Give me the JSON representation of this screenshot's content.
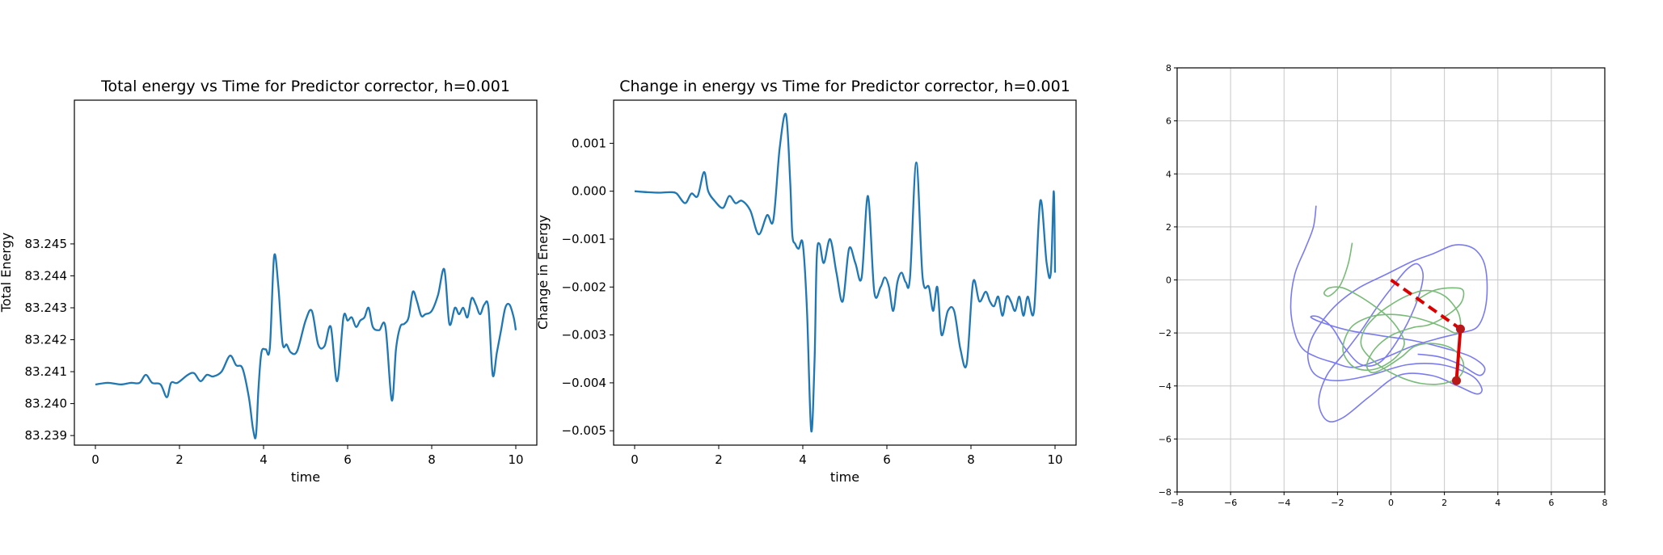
{
  "chart_data": [
    {
      "type": "line",
      "title": "Total energy vs Time for Predictor corrector, h=0.001",
      "xlabel": "time",
      "ylabel": "Total Energy",
      "xlim": [
        -0.5,
        10.5
      ],
      "ylim": [
        83.2387,
        83.2495
      ],
      "xticks": [
        "0",
        "2",
        "4",
        "6",
        "8",
        "10"
      ],
      "xtick_values": [
        0,
        2,
        4,
        6,
        8,
        10
      ],
      "yticks": [
        "83.239",
        "83.240",
        "83.241",
        "83.242",
        "83.243",
        "83.244",
        "83.245"
      ],
      "ytick_values": [
        83.239,
        83.24,
        83.241,
        83.242,
        83.243,
        83.244,
        83.245
      ],
      "color": "#1f77b4",
      "series": [
        {
          "x": [
            0,
            0.3,
            0.6,
            0.85,
            1.05,
            1.2,
            1.35,
            1.55,
            1.7,
            1.8,
            1.95,
            2.2,
            2.35,
            2.5,
            2.65,
            2.8,
            3.0,
            3.2,
            3.35,
            3.5,
            3.65,
            3.75,
            3.82,
            3.88,
            3.95,
            4.05,
            4.15,
            4.25,
            4.35,
            4.45,
            4.55,
            4.65,
            4.8,
            5.0,
            5.15,
            5.3,
            5.45,
            5.6,
            5.75,
            5.9,
            6.0,
            6.1,
            6.2,
            6.3,
            6.4,
            6.5,
            6.6,
            6.75,
            6.9,
            7.05,
            7.15,
            7.25,
            7.35,
            7.45,
            7.55,
            7.65,
            7.75,
            7.85,
            8.0,
            8.15,
            8.3,
            8.42,
            8.55,
            8.65,
            8.75,
            8.85,
            8.95,
            9.05,
            9.15,
            9.25,
            9.35,
            9.45,
            9.55,
            9.65,
            9.75,
            9.85,
            9.95,
            10.0
          ],
          "y": [
            83.2406,
            83.24065,
            83.2406,
            83.24065,
            83.24065,
            83.2409,
            83.24065,
            83.2406,
            83.2402,
            83.24065,
            83.24065,
            83.2409,
            83.24095,
            83.2407,
            83.2409,
            83.24085,
            83.241,
            83.2415,
            83.2412,
            83.2411,
            83.2402,
            83.2392,
            83.239,
            83.2405,
            83.2416,
            83.2417,
            83.24175,
            83.2446,
            83.2437,
            83.2419,
            83.24185,
            83.2416,
            83.24165,
            83.2426,
            83.2429,
            83.24185,
            83.2418,
            83.2424,
            83.2407,
            83.2427,
            83.2426,
            83.2427,
            83.2424,
            83.2426,
            83.2427,
            83.243,
            83.2424,
            83.2423,
            83.2424,
            83.2401,
            83.2417,
            83.2424,
            83.2425,
            83.2427,
            83.2435,
            83.2432,
            83.24275,
            83.2428,
            83.2429,
            83.2434,
            83.2442,
            83.2425,
            83.243,
            83.2428,
            83.243,
            83.2427,
            83.2433,
            83.2431,
            83.2428,
            83.2431,
            83.243,
            83.2409,
            83.2416,
            83.2423,
            83.243,
            83.2431,
            83.2427,
            83.2423
          ]
        }
      ]
    },
    {
      "type": "line",
      "title": "Change in energy vs Time for Predictor corrector, h=0.001",
      "xlabel": "time",
      "ylabel": "Change in Energy",
      "xlim": [
        -0.5,
        10.5
      ],
      "ylim": [
        -0.0053,
        0.0019
      ],
      "xticks": [
        "0",
        "2",
        "4",
        "6",
        "8",
        "10"
      ],
      "xtick_values": [
        0,
        2,
        4,
        6,
        8,
        10
      ],
      "yticks": [
        "0.001",
        "0.000",
        "−0.001",
        "−0.002",
        "−0.003",
        "−0.004",
        "−0.005"
      ],
      "ytick_values": [
        0.001,
        0.0,
        -0.001,
        -0.002,
        -0.003,
        -0.004,
        -0.005
      ],
      "color": "#1f77b4",
      "series": [
        {
          "x": [
            0,
            0.3,
            0.6,
            0.85,
            1.0,
            1.2,
            1.35,
            1.5,
            1.65,
            1.75,
            1.9,
            2.1,
            2.25,
            2.4,
            2.55,
            2.75,
            2.95,
            3.15,
            3.3,
            3.45,
            3.6,
            3.7,
            3.75,
            3.82,
            3.9,
            4.0,
            4.1,
            4.2,
            4.28,
            4.33,
            4.4,
            4.5,
            4.65,
            4.8,
            4.95,
            5.1,
            5.25,
            5.4,
            5.55,
            5.7,
            5.85,
            5.95,
            6.05,
            6.15,
            6.25,
            6.35,
            6.45,
            6.55,
            6.7,
            6.85,
            7.0,
            7.1,
            7.2,
            7.3,
            7.45,
            7.6,
            7.75,
            7.9,
            8.05,
            8.2,
            8.35,
            8.45,
            8.55,
            8.65,
            8.75,
            8.85,
            8.95,
            9.05,
            9.15,
            9.25,
            9.35,
            9.5,
            9.65,
            9.8,
            9.9,
            9.97,
            10.0
          ],
          "y": [
            0.0,
            -2e-05,
            -3e-05,
            -2e-05,
            -5e-05,
            -0.00025,
            -5e-05,
            -0.0001,
            0.0004,
            0.0,
            -0.0002,
            -0.00035,
            -0.0001,
            -0.00025,
            -0.0002,
            -0.0004,
            -0.0009,
            -0.0005,
            -0.0006,
            0.0009,
            0.0016,
            0.0002,
            -0.0009,
            -0.0011,
            -0.0012,
            -0.0011,
            -0.0025,
            -0.005,
            -0.0035,
            -0.0014,
            -0.0011,
            -0.0015,
            -0.001,
            -0.0017,
            -0.0023,
            -0.0012,
            -0.0015,
            -0.0018,
            -0.0001,
            -0.0021,
            -0.002,
            -0.0018,
            -0.002,
            -0.0025,
            -0.0019,
            -0.0017,
            -0.0019,
            -0.0018,
            0.0006,
            -0.0018,
            -0.002,
            -0.0025,
            -0.002,
            -0.003,
            -0.0025,
            -0.0025,
            -0.0033,
            -0.0036,
            -0.0019,
            -0.0023,
            -0.0021,
            -0.0023,
            -0.0024,
            -0.0022,
            -0.0026,
            -0.0022,
            -0.0023,
            -0.0025,
            -0.0022,
            -0.0026,
            -0.0022,
            -0.0025,
            -0.0002,
            -0.0015,
            -0.0017,
            0.0,
            -0.0017
          ]
        }
      ]
    },
    {
      "type": "line",
      "title": "",
      "xlabel": "",
      "ylabel": "",
      "xlim": [
        -8,
        8
      ],
      "ylim": [
        -8,
        8
      ],
      "grid": true,
      "xticks": [
        "−8",
        "−6",
        "−4",
        "−2",
        "0",
        "2",
        "4",
        "6",
        "8"
      ],
      "xtick_values": [
        -8,
        -6,
        -4,
        -2,
        0,
        2,
        4,
        6,
        8
      ],
      "yticks": [
        "−8",
        "−6",
        "−4",
        "−2",
        "0",
        "2",
        "4",
        "6",
        "8"
      ],
      "ytick_values": [
        -8,
        -6,
        -4,
        -2,
        0,
        2,
        4,
        6,
        8
      ],
      "series": [
        {
          "color": "#7b7bf0",
          "x": [
            -2.8,
            -2.9,
            -3.2,
            -3.6,
            -3.75,
            -3.6,
            -3.3,
            -2.8,
            -2.2,
            -1.4,
            -0.4,
            0.8,
            1.8,
            2.6,
            3.2,
            3.5,
            3.6,
            3.5,
            3.2,
            2.8,
            2.3,
            1.6,
            0.8,
            -0.2,
            -1.2,
            -2.0,
            -2.6,
            -3.0,
            -3.1,
            -2.8,
            -2.0,
            -0.8,
            0.6,
            1.9,
            3.0,
            3.4,
            3.2,
            2.5,
            1.5,
            0.3,
            -0.8,
            -1.8,
            -2.4,
            -2.7,
            -2.4,
            -1.7,
            -1.1,
            -0.5,
            0.1,
            0.6,
            1.0,
            1.2,
            0.9,
            0.3,
            -0.4,
            -1.1,
            -1.7,
            -2.2,
            -2.7,
            -3.0,
            -2.6,
            -1.6,
            -0.4,
            0.9,
            2.1,
            3.0,
            3.5,
            3.3,
            2.6,
            1.8,
            1.0
          ],
          "y": [
            2.8,
            2.0,
            1.2,
            0.2,
            -1.0,
            -2.0,
            -2.6,
            -2.9,
            -3.1,
            -3.3,
            -3.0,
            -2.5,
            -2.2,
            -2.0,
            -1.8,
            -1.2,
            -0.3,
            0.6,
            1.1,
            1.3,
            1.3,
            1.0,
            0.7,
            0.2,
            -0.3,
            -0.9,
            -1.6,
            -2.3,
            -3.0,
            -3.6,
            -3.8,
            -3.6,
            -3.2,
            -3.2,
            -3.6,
            -4.1,
            -4.3,
            -4.0,
            -3.6,
            -3.6,
            -4.4,
            -5.2,
            -5.3,
            -4.6,
            -3.6,
            -2.7,
            -1.9,
            -1.0,
            -0.2,
            0.4,
            0.6,
            0.1,
            -1.0,
            -2.2,
            -3.1,
            -3.2,
            -2.6,
            -1.8,
            -1.4,
            -1.4,
            -1.6,
            -1.9,
            -2.1,
            -2.3,
            -2.6,
            -2.9,
            -3.3,
            -3.6,
            -3.2,
            -2.9,
            -2.8
          ]
        },
        {
          "color": "#77bb77",
          "x": [
            -1.45,
            -1.6,
            -1.9,
            -2.3,
            -2.5,
            -2.3,
            -1.8,
            -1.2,
            -0.6,
            -0.1,
            0.3,
            0.5,
            0.2,
            -0.4,
            -1.0,
            -1.5,
            -1.8,
            -1.5,
            -0.8,
            0.0,
            0.8,
            1.5,
            2.0,
            2.4,
            2.6,
            2.5,
            2.0,
            1.3,
            0.6,
            -0.1,
            -0.6,
            -1.0,
            -1.1,
            -0.6,
            0.2,
            1.1,
            2.0,
            2.6,
            2.7,
            2.3,
            1.6,
            0.9,
            0.4,
            -0.2,
            -0.7,
            -0.9,
            -0.6,
            0.0,
            0.8,
            1.4,
            2.0,
            2.6,
            2.7,
            2.3,
            1.6,
            0.9
          ],
          "y": [
            1.4,
            0.6,
            -0.2,
            -0.6,
            -0.5,
            -0.3,
            -0.3,
            -0.6,
            -1.0,
            -1.4,
            -1.9,
            -2.4,
            -2.9,
            -3.3,
            -3.4,
            -3.2,
            -2.6,
            -1.8,
            -1.4,
            -1.3,
            -1.4,
            -1.6,
            -1.8,
            -2.0,
            -1.8,
            -1.2,
            -0.6,
            -0.4,
            -0.6,
            -1.0,
            -1.4,
            -1.9,
            -2.5,
            -3.1,
            -3.6,
            -3.9,
            -3.9,
            -3.6,
            -3.1,
            -2.6,
            -2.4,
            -2.5,
            -2.9,
            -3.3,
            -3.5,
            -3.2,
            -2.6,
            -2.1,
            -1.8,
            -1.7,
            -1.4,
            -0.9,
            -0.4,
            -0.3,
            -0.4,
            -0.8
          ]
        }
      ],
      "pendulum": {
        "color": "#dd0000",
        "origin": [
          0,
          0
        ],
        "mass1": [
          2.6,
          -1.85
        ],
        "mass2": [
          2.45,
          -3.8
        ],
        "arm1_style": "dashed",
        "arm2_style": "solid"
      }
    }
  ]
}
